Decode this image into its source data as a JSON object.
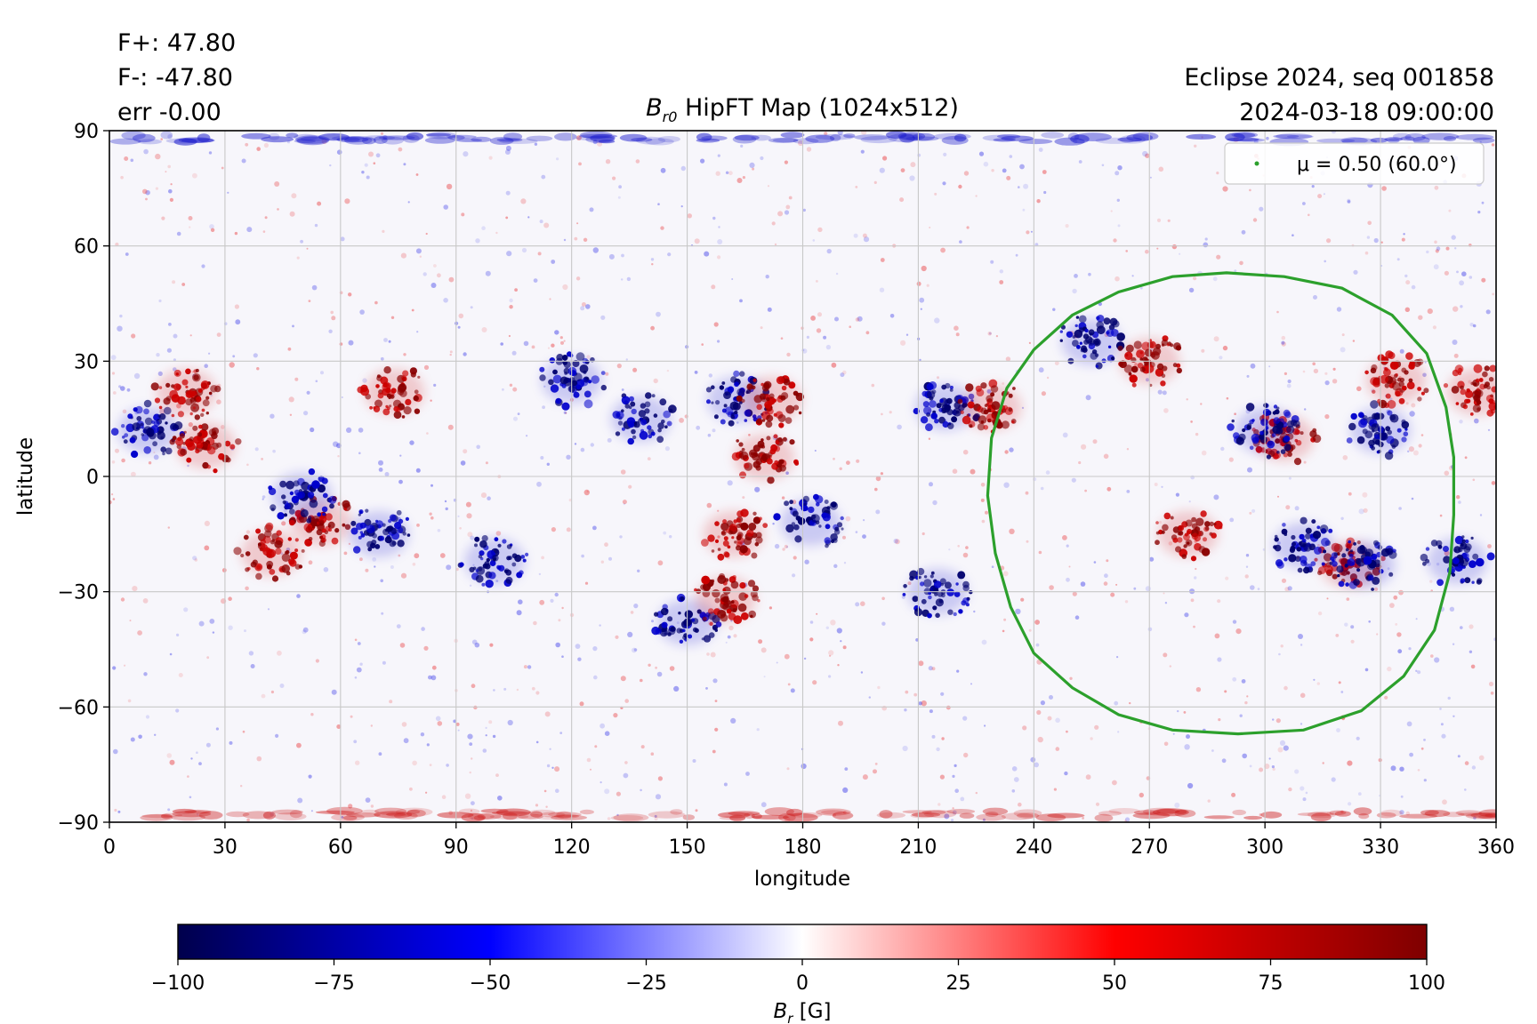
{
  "header": {
    "stats": [
      "F+: 47.80",
      "F-: -47.80",
      "err -0.00"
    ],
    "info_lines": [
      "Eclipse 2024, seq 001858",
      "2024-03-18 09:00:00"
    ]
  },
  "colors": {
    "positive": "#cc0000",
    "negative": "#0000cc",
    "contour": "#2ca02c",
    "grid": "#c8c8c8"
  },
  "chart_data": {
    "type": "heatmap",
    "title": "B_{r0} HipFT Map (1024x512)",
    "title_symbol": "B",
    "title_subscript": "r0",
    "title_rest": " HipFT Map (1024x512)",
    "xlabel": "longitude",
    "ylabel": "latitude",
    "xlim": [
      0,
      360
    ],
    "ylim": [
      -90,
      90
    ],
    "xticks": [
      0,
      30,
      60,
      90,
      120,
      150,
      180,
      210,
      240,
      270,
      300,
      330,
      360
    ],
    "yticks": [
      -90,
      -60,
      -30,
      0,
      30,
      60,
      90
    ],
    "ytick_labels": [
      "−90",
      "−60",
      "−30",
      "0",
      "30",
      "60",
      "90"
    ],
    "grid": true,
    "legend": {
      "label": "μ = 0.50 (60.0°)",
      "position": "top-right"
    },
    "contour": {
      "label": "μ = 0.50 (60.0°)",
      "points": [
        [
          290,
          53
        ],
        [
          305,
          52
        ],
        [
          320,
          49
        ],
        [
          333,
          42
        ],
        [
          342,
          32
        ],
        [
          347,
          18
        ],
        [
          349,
          5
        ],
        [
          349,
          -10
        ],
        [
          348,
          -25
        ],
        [
          344,
          -40
        ],
        [
          336,
          -52
        ],
        [
          325,
          -61
        ],
        [
          310,
          -66
        ],
        [
          293,
          -67
        ],
        [
          276,
          -66
        ],
        [
          262,
          -62
        ],
        [
          250,
          -55
        ],
        [
          240,
          -46
        ],
        [
          234,
          -34
        ],
        [
          230,
          -20
        ],
        [
          228,
          -5
        ],
        [
          229,
          10
        ],
        [
          233,
          23
        ],
        [
          240,
          33
        ],
        [
          250,
          42
        ],
        [
          262,
          48
        ],
        [
          276,
          52
        ],
        [
          290,
          53
        ]
      ]
    },
    "colorbar": {
      "label": "B_r [G]",
      "label_symbol": "B",
      "label_subscript": "r",
      "label_rest": " [G]",
      "range": [
        -100,
        100
      ],
      "ticks": [
        -100,
        -75,
        -50,
        -25,
        0,
        25,
        50,
        75,
        100
      ],
      "tick_labels": [
        "−100",
        "−75",
        "−50",
        "−25",
        "0",
        "25",
        "50",
        "75",
        "100"
      ],
      "colormap": "seismic"
    },
    "active_regions": [
      {
        "lon": 10,
        "lat": 12,
        "polarity": "negative"
      },
      {
        "lon": 25,
        "lat": 8,
        "polarity": "positive"
      },
      {
        "lon": 20,
        "lat": 22,
        "polarity": "positive"
      },
      {
        "lon": 74,
        "lat": 22,
        "polarity": "positive"
      },
      {
        "lon": 42,
        "lat": -20,
        "polarity": "positive"
      },
      {
        "lon": 55,
        "lat": -12,
        "polarity": "positive"
      },
      {
        "lon": 70,
        "lat": -15,
        "polarity": "negative"
      },
      {
        "lon": 50,
        "lat": -5,
        "polarity": "negative"
      },
      {
        "lon": 100,
        "lat": -22,
        "polarity": "negative"
      },
      {
        "lon": 120,
        "lat": 25,
        "polarity": "negative"
      },
      {
        "lon": 138,
        "lat": 15,
        "polarity": "negative"
      },
      {
        "lon": 163,
        "lat": 20,
        "polarity": "negative"
      },
      {
        "lon": 172,
        "lat": 20,
        "polarity": "positive"
      },
      {
        "lon": 170,
        "lat": 5,
        "polarity": "positive"
      },
      {
        "lon": 182,
        "lat": -12,
        "polarity": "negative"
      },
      {
        "lon": 162,
        "lat": -15,
        "polarity": "positive"
      },
      {
        "lon": 150,
        "lat": -38,
        "polarity": "negative"
      },
      {
        "lon": 160,
        "lat": -32,
        "polarity": "positive"
      },
      {
        "lon": 217,
        "lat": 18,
        "polarity": "negative"
      },
      {
        "lon": 229,
        "lat": 18,
        "polarity": "positive"
      },
      {
        "lon": 215,
        "lat": -30,
        "polarity": "negative"
      },
      {
        "lon": 255,
        "lat": 35,
        "polarity": "negative"
      },
      {
        "lon": 270,
        "lat": 30,
        "polarity": "positive"
      },
      {
        "lon": 305,
        "lat": 10,
        "polarity": "positive"
      },
      {
        "lon": 300,
        "lat": 12,
        "polarity": "negative"
      },
      {
        "lon": 330,
        "lat": 12,
        "polarity": "negative"
      },
      {
        "lon": 334,
        "lat": 25,
        "polarity": "positive"
      },
      {
        "lon": 322,
        "lat": -23,
        "polarity": "positive"
      },
      {
        "lon": 326,
        "lat": -23,
        "polarity": "negative"
      },
      {
        "lon": 310,
        "lat": -18,
        "polarity": "negative"
      },
      {
        "lon": 350,
        "lat": -22,
        "polarity": "negative"
      },
      {
        "lon": 355,
        "lat": 22,
        "polarity": "positive"
      },
      {
        "lon": 280,
        "lat": -15,
        "polarity": "positive"
      }
    ]
  }
}
